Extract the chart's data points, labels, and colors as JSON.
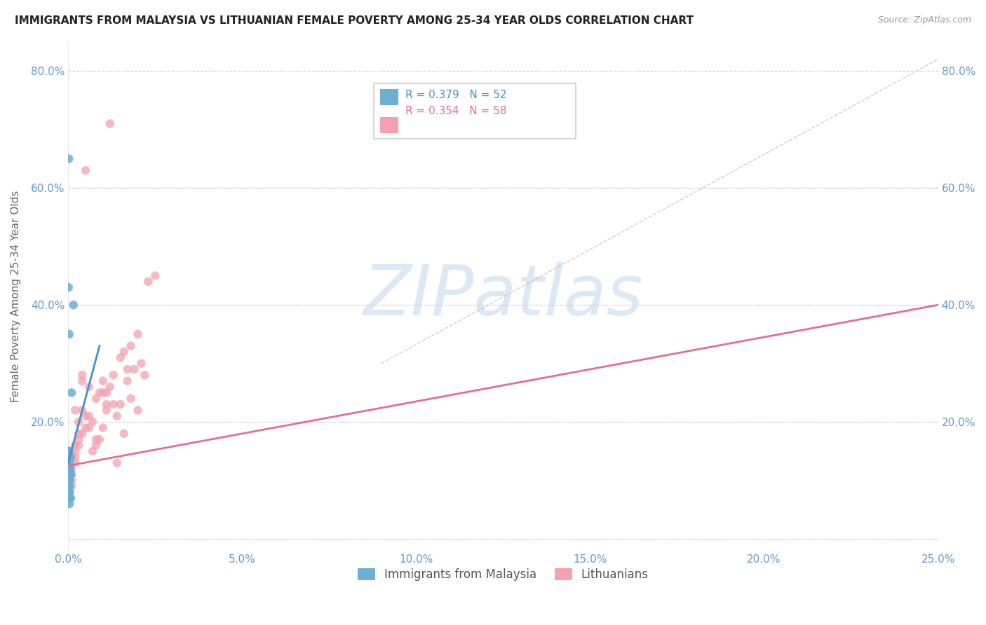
{
  "title": "IMMIGRANTS FROM MALAYSIA VS LITHUANIAN FEMALE POVERTY AMONG 25-34 YEAR OLDS CORRELATION CHART",
  "source": "Source: ZipAtlas.com",
  "ylabel": "Female Poverty Among 25-34 Year Olds",
  "xlim": [
    0.0,
    0.25
  ],
  "ylim": [
    -0.02,
    0.85
  ],
  "xticks": [
    0.0,
    0.05,
    0.1,
    0.15,
    0.2,
    0.25
  ],
  "xticklabels": [
    "0.0%",
    "5.0%",
    "10.0%",
    "15.0%",
    "20.0%",
    "25.0%"
  ],
  "yticks": [
    0.0,
    0.2,
    0.4,
    0.6,
    0.8
  ],
  "yticklabels": [
    "",
    "20.0%",
    "40.0%",
    "60.0%",
    "80.0%"
  ],
  "legend1_label": "R = 0.379   N = 52",
  "legend2_label": "R = 0.354   N = 58",
  "group1_color": "#6baed6",
  "group2_color": "#f4a0b0",
  "line1_color": "#4292c6",
  "line2_color": "#e07090",
  "tick_color": "#6699cc",
  "grid_color": "#cccccc",
  "watermark": "ZIPatlas",
  "watermark_color": "#dde8f5",
  "group1_name": "Immigrants from Malaysia",
  "group2_name": "Lithuanians",
  "malaysia_x": [
    0.0002,
    0.0003,
    0.0001,
    0.0004,
    0.0002,
    0.0005,
    0.0001,
    0.0003,
    0.0004,
    0.0001,
    0.0002,
    0.0003,
    0.0001,
    0.0002,
    0.0001,
    0.0003,
    0.0002,
    0.0004,
    0.0001,
    0.0002,
    0.0001,
    0.0005,
    0.0003,
    0.0002,
    0.0001,
    0.0004,
    0.0002,
    0.0003,
    0.0001,
    0.0002,
    0.0006,
    0.0002,
    0.0003,
    0.0001,
    0.0004,
    0.0002,
    0.0001,
    0.0003,
    0.0002,
    0.0001,
    0.0007,
    0.0002,
    0.0003,
    0.0001,
    0.0002,
    0.0004,
    0.0001,
    0.0008,
    0.0002,
    0.0003,
    0.001,
    0.0015
  ],
  "malaysia_y": [
    0.14,
    0.1,
    0.08,
    0.12,
    0.65,
    0.07,
    0.09,
    0.11,
    0.06,
    0.13,
    0.15,
    0.08,
    0.1,
    0.12,
    0.14,
    0.09,
    0.07,
    0.11,
    0.43,
    0.08,
    0.1,
    0.12,
    0.15,
    0.09,
    0.11,
    0.13,
    0.08,
    0.1,
    0.12,
    0.07,
    0.14,
    0.09,
    0.11,
    0.13,
    0.08,
    0.1,
    0.12,
    0.15,
    0.09,
    0.11,
    0.07,
    0.13,
    0.08,
    0.1,
    0.12,
    0.14,
    0.09,
    0.11,
    0.13,
    0.35,
    0.25,
    0.4
  ],
  "lithuanian_x": [
    0.001,
    0.003,
    0.002,
    0.005,
    0.004,
    0.008,
    0.01,
    0.015,
    0.02,
    0.025,
    0.002,
    0.004,
    0.006,
    0.008,
    0.012,
    0.018,
    0.022,
    0.001,
    0.003,
    0.007,
    0.011,
    0.016,
    0.021,
    0.002,
    0.004,
    0.009,
    0.013,
    0.017,
    0.001,
    0.005,
    0.01,
    0.014,
    0.019,
    0.002,
    0.006,
    0.011,
    0.016,
    0.001,
    0.004,
    0.008,
    0.013,
    0.018,
    0.003,
    0.007,
    0.012,
    0.002,
    0.005,
    0.01,
    0.015,
    0.02,
    0.001,
    0.006,
    0.011,
    0.017,
    0.003,
    0.009,
    0.014,
    0.023
  ],
  "lithuanian_y": [
    0.14,
    0.18,
    0.22,
    0.63,
    0.27,
    0.16,
    0.19,
    0.23,
    0.22,
    0.45,
    0.15,
    0.28,
    0.21,
    0.17,
    0.26,
    0.24,
    0.28,
    0.12,
    0.16,
    0.2,
    0.25,
    0.18,
    0.3,
    0.13,
    0.22,
    0.17,
    0.23,
    0.27,
    0.11,
    0.19,
    0.25,
    0.21,
    0.29,
    0.14,
    0.26,
    0.22,
    0.32,
    0.1,
    0.18,
    0.24,
    0.28,
    0.33,
    0.2,
    0.15,
    0.71,
    0.16,
    0.21,
    0.27,
    0.31,
    0.35,
    0.09,
    0.19,
    0.23,
    0.29,
    0.17,
    0.25,
    0.13,
    0.44
  ],
  "blue_line_x": [
    0.0,
    0.009
  ],
  "blue_line_y": [
    0.13,
    0.33
  ],
  "pink_line_x": [
    0.0,
    0.25
  ],
  "pink_line_y": [
    0.125,
    0.4
  ],
  "ref_line_x": [
    0.09,
    0.25
  ],
  "ref_line_y": [
    0.3,
    0.82
  ]
}
